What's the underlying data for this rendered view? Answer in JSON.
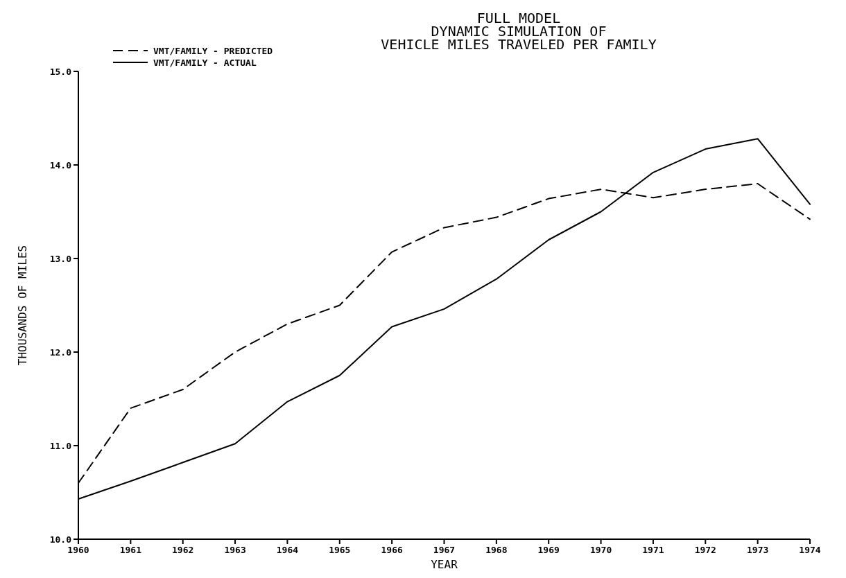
{
  "chart_data": {
    "type": "line",
    "title": "FULL MODEL\nDYNAMIC SIMULATION OF\nVEHICLE MILES TRAVELED PER FAMILY",
    "xlabel": "YEAR",
    "ylabel": "THOUSANDS OF MILES",
    "categories": [
      "1960",
      "1961",
      "1962",
      "1963",
      "1964",
      "1965",
      "1966",
      "1967",
      "1968",
      "1969",
      "1970",
      "1971",
      "1972",
      "1973",
      "1974"
    ],
    "series": [
      {
        "name": "VMT/FAMILY - PREDICTED",
        "color": "#000000",
        "line_style": "dashed",
        "values": [
          10.6,
          11.4,
          11.6,
          12.0,
          12.3,
          12.5,
          13.07,
          13.33,
          13.44,
          13.64,
          13.74,
          13.65,
          13.74,
          13.8,
          13.42
        ]
      },
      {
        "name": "VMT/FAMILY - ACTUAL",
        "color": "#000000",
        "line_style": "solid",
        "values": [
          10.43,
          10.62,
          10.82,
          11.02,
          11.47,
          11.75,
          12.27,
          12.46,
          12.78,
          13.2,
          13.5,
          13.92,
          14.17,
          14.28,
          13.58
        ]
      }
    ],
    "ylim": [
      10,
      15
    ],
    "yticks": [
      {
        "value": 10,
        "label": "10.0"
      },
      {
        "value": 11,
        "label": "11.0"
      },
      {
        "value": 12,
        "label": "12.0"
      },
      {
        "value": 13,
        "label": "13.0"
      },
      {
        "value": 14,
        "label": "14.0"
      },
      {
        "value": 15,
        "label": "15.0"
      }
    ],
    "grid": false,
    "legend": "top left",
    "marker": "none"
  }
}
